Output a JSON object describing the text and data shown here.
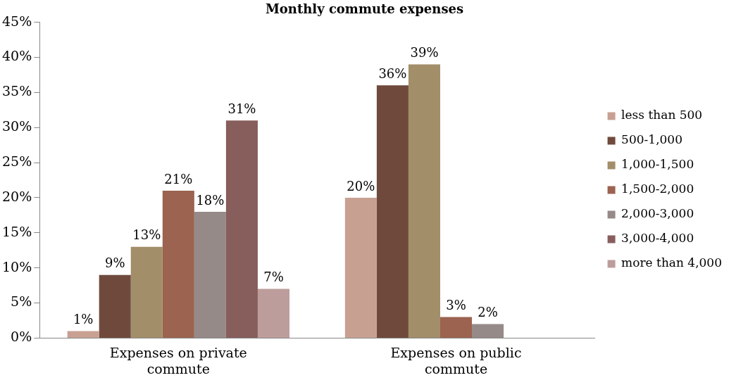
{
  "chart_data": {
    "type": "bar",
    "title": "Monthly commute expenses",
    "categories": [
      "Expenses on private commute",
      "Expenses on public commute"
    ],
    "ylim": [
      0,
      45
    ],
    "yticks": [
      {
        "value": 0,
        "label": "0%"
      },
      {
        "value": 5,
        "label": "5%"
      },
      {
        "value": 10,
        "label": "10%"
      },
      {
        "value": 15,
        "label": "15%"
      },
      {
        "value": 20,
        "label": "20%"
      },
      {
        "value": 25,
        "label": "25%"
      },
      {
        "value": 30,
        "label": "30%"
      },
      {
        "value": 35,
        "label": "35%"
      },
      {
        "value": 40,
        "label": "40%"
      },
      {
        "value": 45,
        "label": "45%"
      }
    ],
    "grid": false,
    "legend": "right",
    "series": [
      {
        "name": "less than 500",
        "color": "#c8a092",
        "values": [
          1,
          20
        ],
        "value_labels": [
          "1%",
          "20%"
        ]
      },
      {
        "name": "500-1,000",
        "color": "#6f4a3c",
        "values": [
          9,
          36
        ],
        "value_labels": [
          "9%",
          "36%"
        ]
      },
      {
        "name": "1,000-1,500",
        "color": "#a38e6a",
        "values": [
          13,
          39
        ],
        "value_labels": [
          "13%",
          "39%"
        ]
      },
      {
        "name": "1,500-2,000",
        "color": "#9b6350",
        "values": [
          21,
          3
        ],
        "value_labels": [
          "21%",
          "3%"
        ]
      },
      {
        "name": "2,000-3,000",
        "color": "#968a88",
        "values": [
          18,
          2
        ],
        "value_labels": [
          "18%",
          "2%"
        ]
      },
      {
        "name": "3,000-4,000",
        "color": "#875e5c",
        "values": [
          31,
          null
        ],
        "value_labels": [
          "31%",
          null
        ]
      },
      {
        "name": "more than 4,000",
        "color": "#bd9d9b",
        "values": [
          7,
          null
        ],
        "value_labels": [
          "7%",
          null
        ]
      }
    ]
  }
}
